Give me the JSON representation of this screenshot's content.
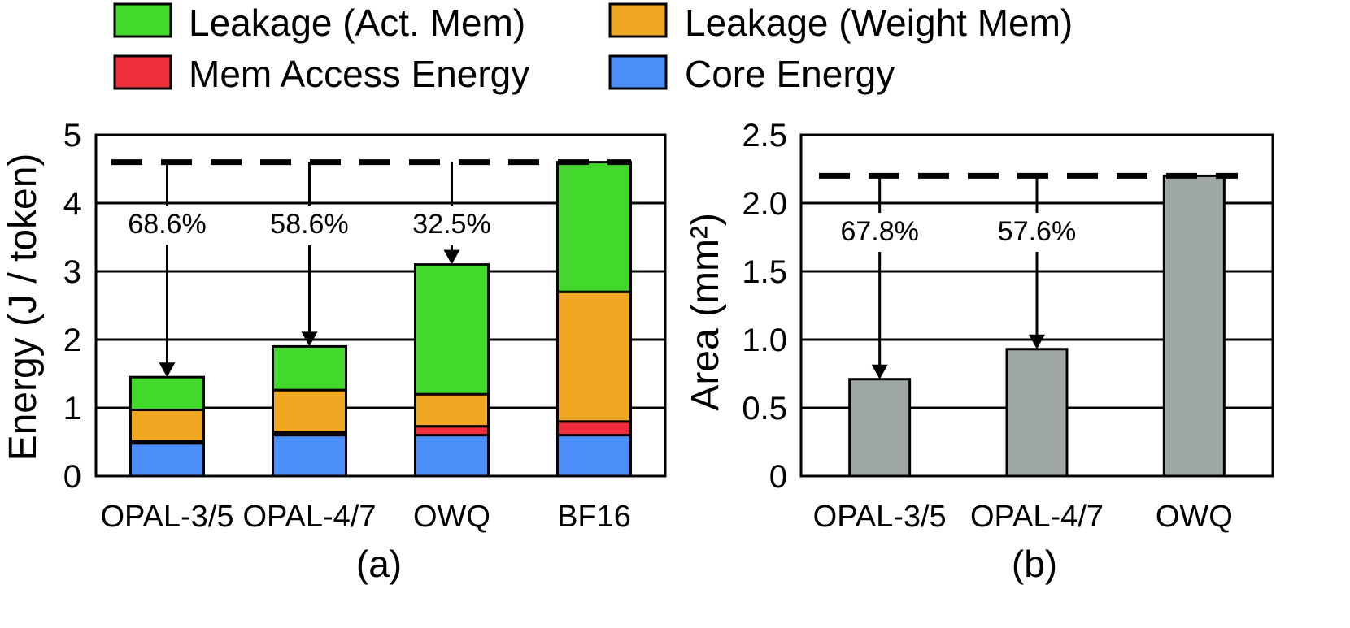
{
  "legend": {
    "items": [
      {
        "label": "Leakage (Act. Mem)",
        "color": "#43d92c"
      },
      {
        "label": "Leakage (Weight Mem)",
        "color": "#f0a823"
      },
      {
        "label": "Mem Access Energy",
        "color": "#ee2f3b"
      },
      {
        "label": "Core Energy",
        "color": "#4b8ef8"
      }
    ]
  },
  "chart_data": [
    {
      "type": "bar",
      "stacked": true,
      "panel_label": "(a)",
      "ylabel": "Energy (J / token)",
      "ylim": [
        0,
        5
      ],
      "yticks": [
        0,
        1,
        2,
        3,
        4,
        5
      ],
      "categories": [
        "OPAL-3/5",
        "OPAL-4/7",
        "OWQ",
        "BF16"
      ],
      "series": [
        {
          "name": "Core Energy",
          "color": "#4b8ef8",
          "values": [
            0.48,
            0.6,
            0.6,
            0.6
          ]
        },
        {
          "name": "Mem Access Energy",
          "color": "#ee2f3b",
          "values": [
            0.03,
            0.04,
            0.13,
            0.2
          ]
        },
        {
          "name": "Leakage (Weight Mem)",
          "color": "#f0a823",
          "values": [
            0.46,
            0.62,
            0.47,
            1.9
          ]
        },
        {
          "name": "Leakage (Act. Mem)",
          "color": "#43d92c",
          "values": [
            0.48,
            0.64,
            1.9,
            1.9
          ]
        }
      ],
      "reference_line": 4.6,
      "reductions": [
        "68.6%",
        "58.6%",
        "32.5%",
        ""
      ],
      "grid": true
    },
    {
      "type": "bar",
      "panel_label": "(b)",
      "ylabel": "Area",
      "ylabel_unit": "(mm²)",
      "ylim": [
        0,
        2.5
      ],
      "yticks": [
        "0",
        "0.5",
        "1.0",
        "1.5",
        "2.0",
        "2.5"
      ],
      "categories": [
        "OPAL-3/5",
        "OPAL-4/7",
        "OWQ"
      ],
      "color": "#9fa7a7",
      "values": [
        0.71,
        0.93,
        2.2
      ],
      "reference_line": 2.2,
      "reductions": [
        "67.8%",
        "57.6%",
        ""
      ],
      "grid": true
    }
  ]
}
